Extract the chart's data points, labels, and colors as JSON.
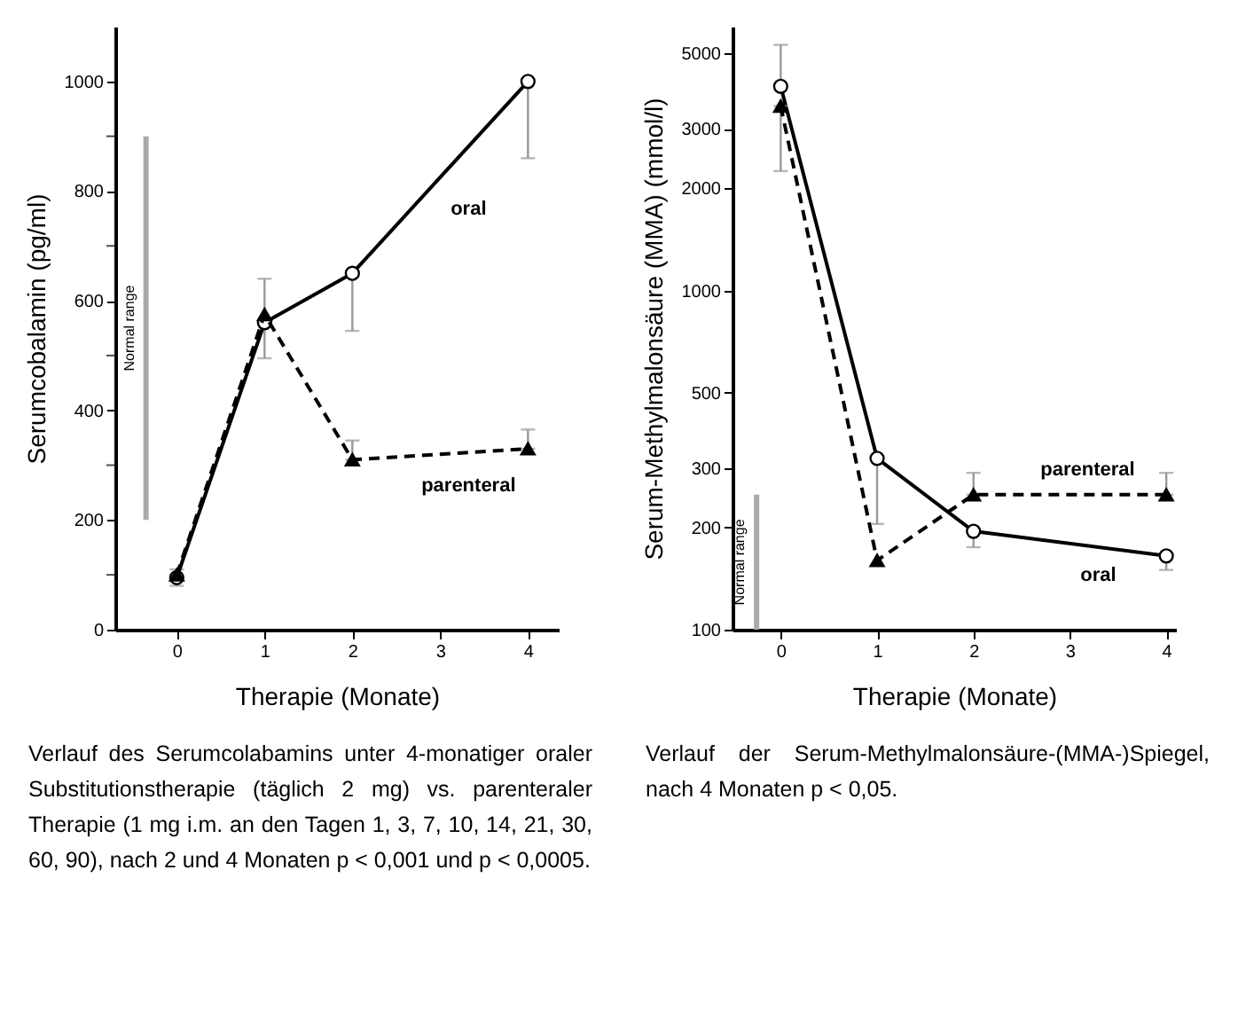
{
  "chart_data": [
    {
      "type": "line",
      "xlabel": "Therapie (Monate)",
      "ylabel": "Serumcobalamin (pg/ml)",
      "x": [
        0,
        1,
        2,
        4
      ],
      "xlim": [
        -0.7,
        4.35
      ],
      "xticks": [
        0,
        1,
        2,
        3,
        4
      ],
      "ylim": [
        0,
        1100
      ],
      "yticks": [
        0,
        {
          "value": 100,
          "label": null
        },
        200,
        {
          "value": 300,
          "label": null
        },
        400,
        {
          "value": 500,
          "label": null
        },
        600,
        {
          "value": 700,
          "label": null
        },
        800,
        {
          "value": 900,
          "label": null
        },
        1000
      ],
      "legend": false,
      "grid": false,
      "series": [
        {
          "name": "oral",
          "color": "#000000",
          "marker": "circle",
          "line_style": "solid",
          "values": [
            95,
            560,
            650,
            1000
          ],
          "errors": [
            [
              80,
              110
            ],
            [
              495,
              640
            ],
            [
              545,
              650
            ],
            [
              860,
              1000
            ]
          ]
        },
        {
          "name": "parenteral",
          "color": "#000000",
          "marker": "triangle",
          "line_style": "dashed",
          "values": [
            100,
            575,
            310,
            330
          ],
          "errors": [
            null,
            null,
            [
              310,
              345
            ],
            [
              330,
              365
            ]
          ]
        },
        {
          "name": "Normal range",
          "type": "bar",
          "color": "#aaaaaa",
          "x": [
            -0.35
          ],
          "base": [
            200
          ],
          "values": [
            700
          ]
        }
      ],
      "annotations": [
        "Verlauf des Serumcolabamins unter 4-monatiger oraler Substitutionstherapie (täglich 2 mg) vs. parenteraler Therapie (1 mg i.m. an den Tagen 1, 3, 7, 10, 14, 21, 30, 60, 90), nach 2 und 4 Monaten p < 0,001 und p < 0,0005."
      ]
    },
    {
      "type": "line",
      "xlabel": "Therapie (Monate)",
      "ylabel": "Serum-Methylmalonsäure (MMA) (mmol/l)",
      "x": [
        0,
        1,
        2,
        4
      ],
      "xlim": [
        -0.5,
        4.1
      ],
      "xticks": [
        0,
        1,
        2,
        3,
        4
      ],
      "ylim": [
        100,
        6000
      ],
      "yticks": [
        100,
        200,
        300,
        500,
        1000,
        2000,
        3000,
        5000
      ],
      "log": "y",
      "legend": false,
      "grid": false,
      "series": [
        {
          "name": "oral",
          "color": "#000000",
          "marker": "circle",
          "line_style": "solid",
          "values": [
            4000,
            320,
            195,
            165
          ],
          "errors": [
            [
              4000,
              5300
            ],
            [
              205,
              320
            ],
            [
              175,
              195
            ],
            [
              150,
              165
            ]
          ]
        },
        {
          "name": "parenteral",
          "color": "#000000",
          "marker": "triangle",
          "line_style": "dashed",
          "values": [
            3500,
            160,
            250,
            250
          ],
          "errors": [
            [
              2250,
              3500
            ],
            null,
            [
              250,
              290
            ],
            [
              250,
              290
            ]
          ]
        },
        {
          "name": "Normal range",
          "type": "bar",
          "color": "#aaaaaa",
          "x": [
            -0.25
          ],
          "base": [
            100
          ],
          "values": [
            150
          ]
        }
      ],
      "annotations": [
        "Verlauf der Serum-Methylmalonsäure-(MMA-)Spiegel, nach 4 Monaten p < 0,05."
      ]
    }
  ]
}
